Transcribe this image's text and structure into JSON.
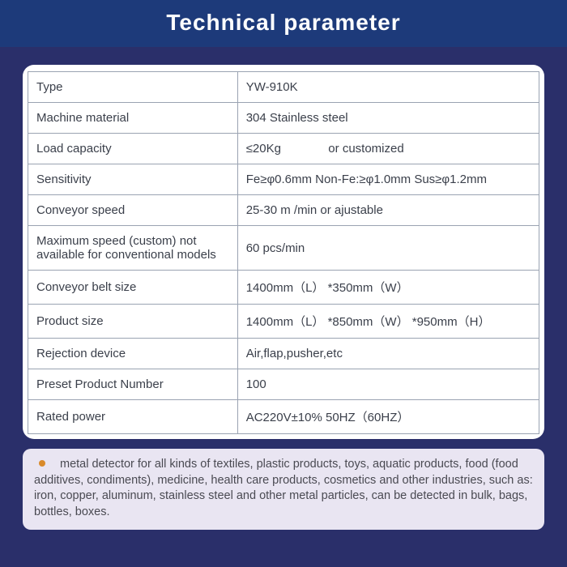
{
  "header": {
    "title": "Technical  parameter"
  },
  "table": {
    "rows": [
      {
        "label": "Type",
        "value": "YW-910K"
      },
      {
        "label": "Machine material",
        "value": "304 Stainless steel"
      },
      {
        "label": "Load capacity",
        "value": "≤20Kg              or customized"
      },
      {
        "label": "Sensitivity",
        "value": "Fe≥φ0.6mm   Non-Fe:≥φ1.0mm  Sus≥φ1.2mm"
      },
      {
        "label": "Conveyor speed",
        "value": "25-30 m /min     or ajustable"
      },
      {
        "label": "Maximum speed (custom) not available for conventional models",
        "value": "60 pcs/min"
      },
      {
        "label": "Conveyor belt size",
        "value": "1400mm（L） *350mm（W）"
      },
      {
        "label": "Product size",
        "value": "1400mm（L） *850mm（W） *950mm（H）"
      },
      {
        "label": "Rejection device",
        "value": "Air,flap,pusher,etc"
      },
      {
        "label": "Preset Product Number",
        "value": "100"
      },
      {
        "label": "Rated power",
        "value": "AC220V±10% 50HZ（60HZ）"
      }
    ]
  },
  "note": {
    "text": "metal detector for all kinds of textiles, plastic products, toys, aquatic products, food (food additives, condiments), medicine, health care products, cosmetics and other industries, such as: iron, copper, aluminum, stainless steel and other metal particles, can be detected in bulk, bags, bottles, boxes."
  },
  "colors": {
    "page_bg": "#2a2f6a",
    "header_bg": "#1d3a7a",
    "header_text": "#ffffff",
    "panel_bg": "#ffffff",
    "border": "#9aa3b2",
    "cell_text": "#3a3f4a",
    "note_bg": "#e9e5f2",
    "note_text": "#4a4a52",
    "bullet": "#d98a2b"
  }
}
